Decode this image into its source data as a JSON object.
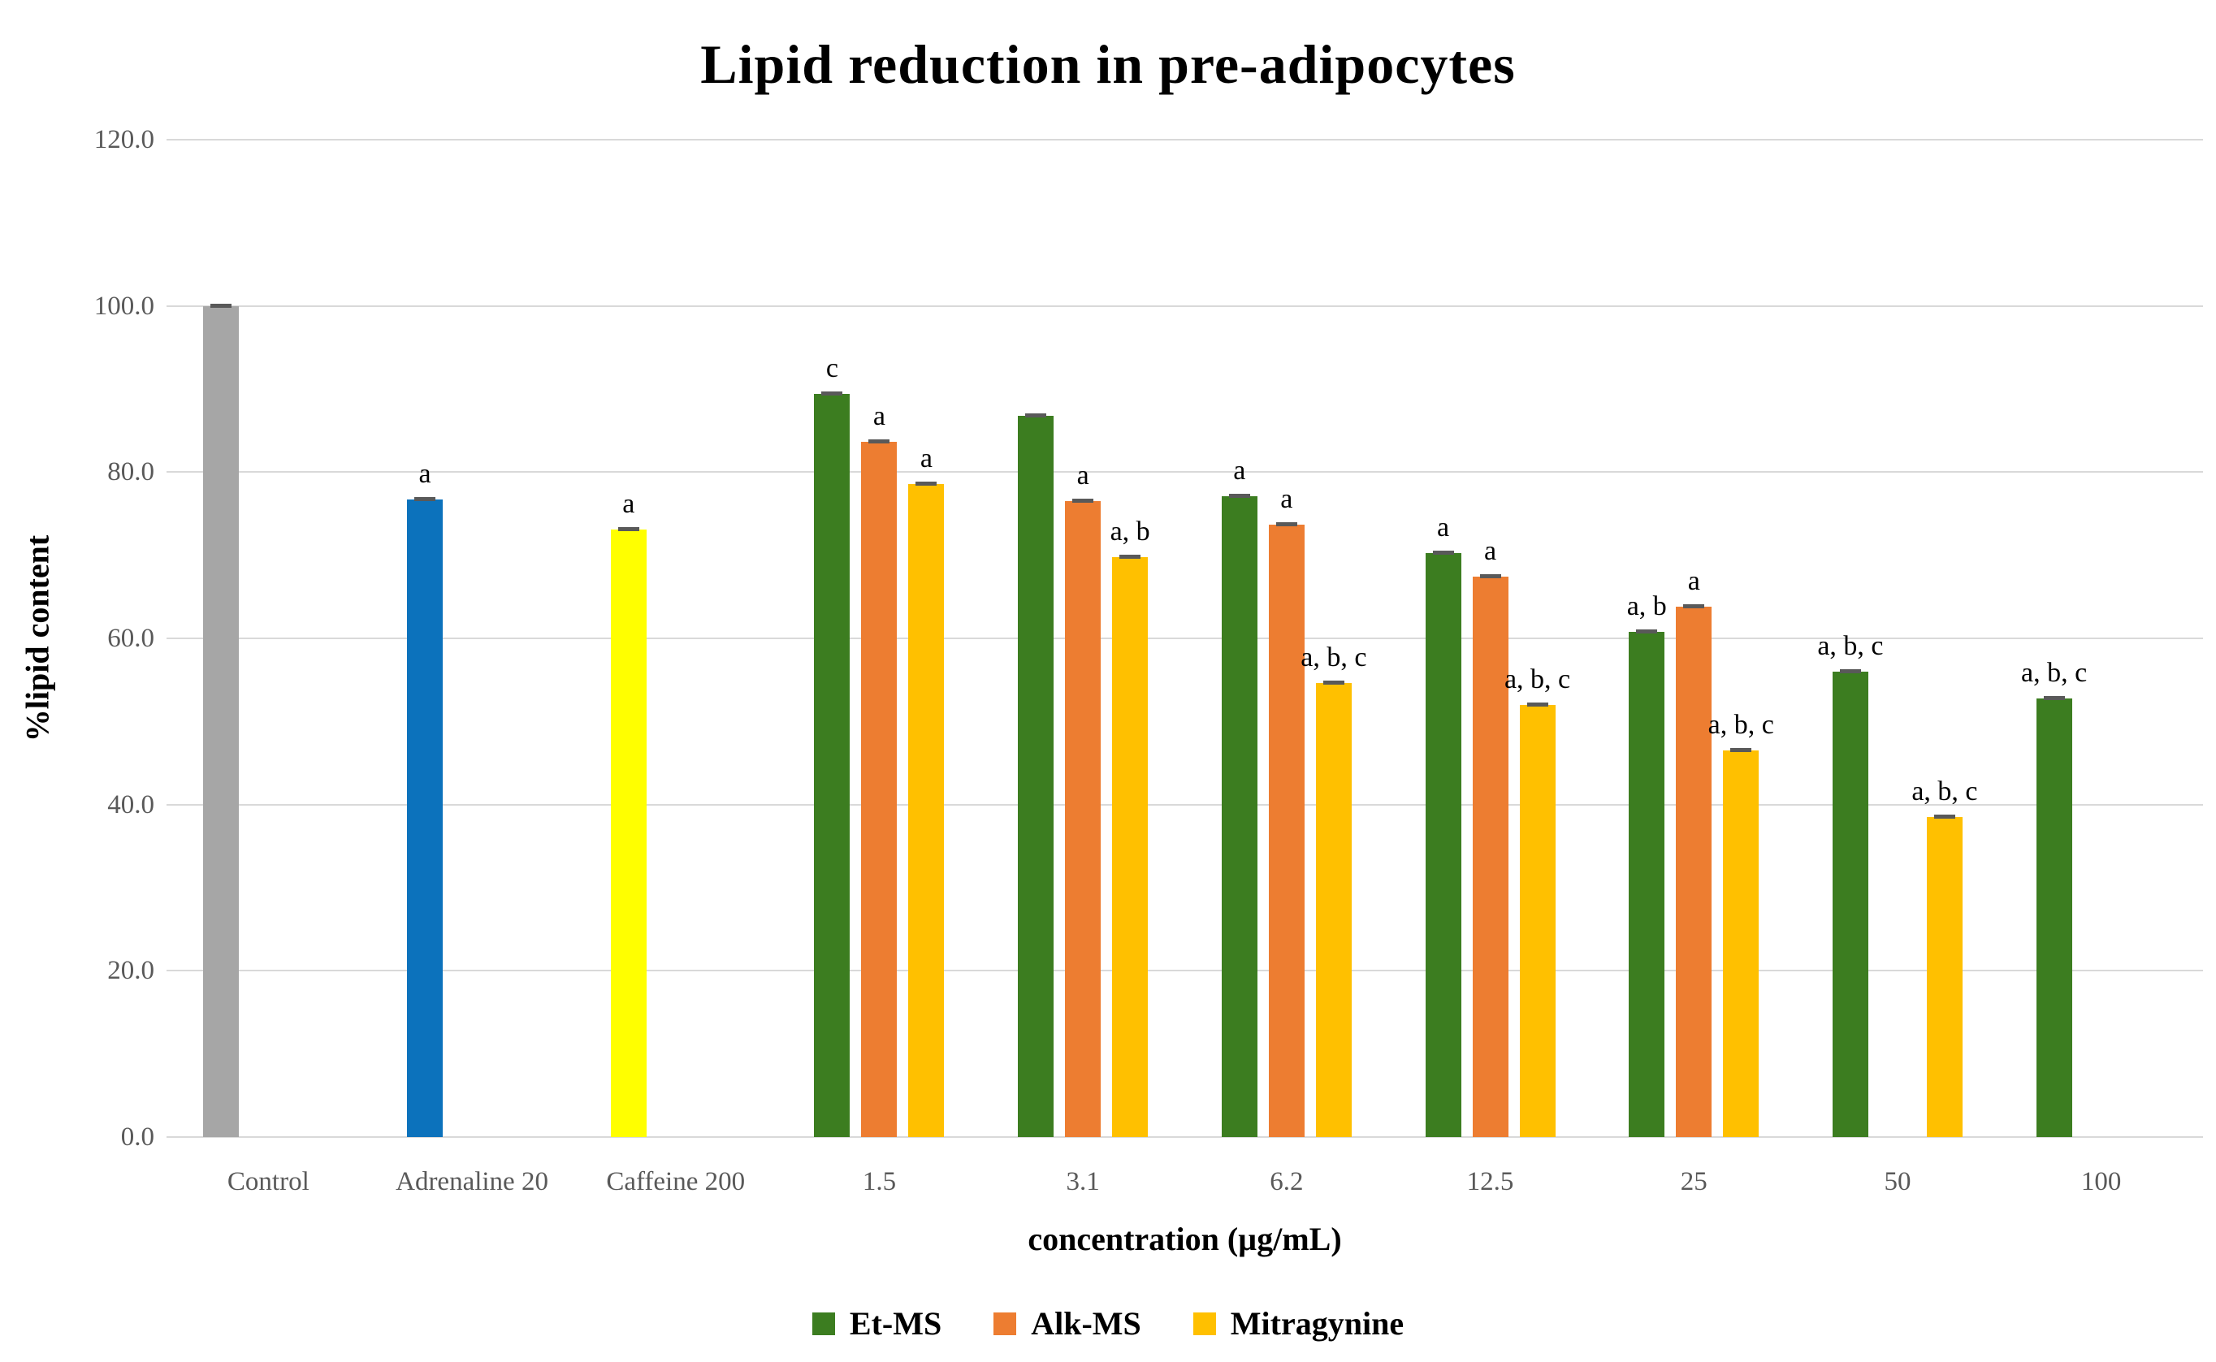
{
  "chart_data": {
    "type": "bar",
    "title": "Lipid reduction in pre-adipocytes",
    "xlabel": "concentration (µg/mL)",
    "ylabel": "%lipid content",
    "ylim": [
      0,
      120
    ],
    "ytick_step": 20,
    "ytick_labels": [
      "0.0",
      "20.0",
      "40.0",
      "60.0",
      "80.0",
      "100.0",
      "120.0"
    ],
    "grid": true,
    "legend_position": "bottom",
    "categories": [
      "Control",
      "Adrenaline 20",
      "Caffeine 200",
      "1.5",
      "3.1",
      "6.2",
      "12.5",
      "25",
      "50",
      "100"
    ],
    "series": [
      {
        "name": "Et-MS",
        "color": "#3C7D20",
        "values": [
          100.0,
          76.7,
          73.1,
          89.4,
          86.8,
          77.1,
          70.3,
          60.8,
          56.0,
          52.8
        ],
        "point_colors": {
          "0": "#A6A6A6",
          "1": "#0C72BC",
          "2": "#FFFF00"
        },
        "annotations": [
          "",
          "a",
          "a",
          "c",
          "",
          "a",
          "a",
          "a, b",
          "a, b, c",
          "a, b, c"
        ]
      },
      {
        "name": "Alk-MS",
        "color": "#ED7D31",
        "values": [
          null,
          null,
          null,
          83.6,
          76.5,
          73.7,
          67.4,
          63.8,
          null,
          null
        ],
        "annotations": [
          "",
          "",
          "",
          "a",
          "a",
          "a",
          "a",
          "a",
          "",
          ""
        ]
      },
      {
        "name": "Mitragynine",
        "color": "#FFC000",
        "values": [
          null,
          null,
          null,
          78.6,
          69.8,
          54.6,
          52.0,
          46.5,
          38.5,
          null
        ],
        "annotations": [
          "",
          "",
          "",
          "a",
          "a, b",
          "a, b, c",
          "a, b, c",
          "a, b, c",
          "a, b, c",
          ""
        ]
      }
    ],
    "colors": {
      "grid": "#D9D9D9",
      "tick_text": "#595959",
      "annotation_text": "#000000",
      "error_cap": "#595959",
      "background": "#FFFFFF"
    }
  }
}
